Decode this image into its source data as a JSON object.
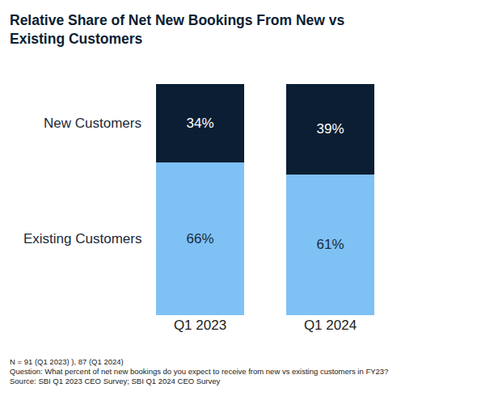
{
  "chart_data": {
    "type": "bar",
    "title": "Relative Share of Net New Bookings From New vs Existing Customers",
    "categories": [
      "Q1 2023",
      "Q1 2024"
    ],
    "series": [
      {
        "name": "Existing Customers",
        "color": "#7ec1f5",
        "values": [
          66,
          61
        ],
        "value_labels": [
          "66%",
          "61%"
        ]
      },
      {
        "name": "New Customers",
        "color": "#0b1e33",
        "values": [
          34,
          39
        ],
        "value_labels": [
          "34%",
          "39%"
        ]
      }
    ],
    "ylim": [
      0,
      100
    ],
    "stacked": true,
    "data_labels": true,
    "grid": false,
    "tick_labels": "x",
    "notes": [
      "N = 91 (Q1 2023) ), 87 (Q1 2024)",
      "Question: What percent of net new bookings do you expect to receive from new vs existing customers in FY23?",
      "Source: SBI Q1 2023 CEO Survey; SBI Q1 2024 CEO Survey"
    ]
  }
}
